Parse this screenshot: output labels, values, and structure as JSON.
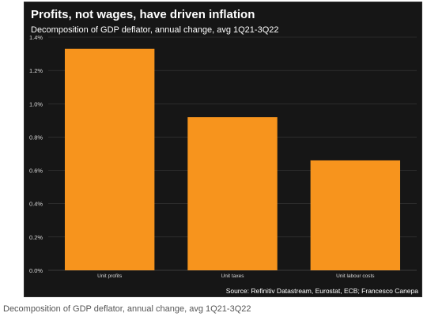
{
  "caption": "Decomposition of GDP deflator, annual change, avg 1Q21-3Q22",
  "chart_data": {
    "type": "bar",
    "title": "Profits, not wages, have driven inflation",
    "subtitle": "Decomposition of GDP deflator, annual change, avg 1Q21-3Q22",
    "source": "Source: Refinitiv Datastream, Eurostat, ECB; Francesco Canepa",
    "categories": [
      "Unit profits",
      "Unit taxes",
      "Unit labour costs"
    ],
    "values": [
      1.33,
      0.92,
      0.66
    ],
    "ylim": [
      0,
      1.4
    ],
    "yticks": [
      "0.0%",
      "0.2%",
      "0.4%",
      "0.6%",
      "0.8%",
      "1.0%",
      "1.2%",
      "1.4%"
    ],
    "xlabel": "",
    "ylabel": "",
    "grid": true,
    "colors": {
      "background": "#161616",
      "bar": "#f7941d",
      "grid": "#3a3a3a",
      "text": "#ffffff",
      "tick_text": "#d8d8d8"
    }
  }
}
